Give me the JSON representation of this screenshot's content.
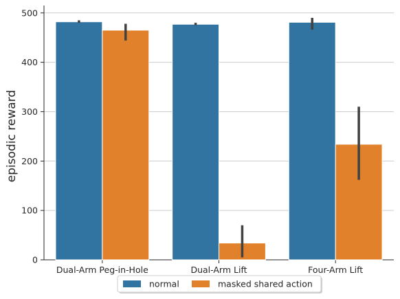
{
  "chart_data": {
    "type": "bar",
    "categories": [
      "Dual-Arm Peg-in-Hole",
      "Dual-Arm Lift",
      "Four-Arm Lift"
    ],
    "series": [
      {
        "name": "normal",
        "color": "#3274a1",
        "values": [
          482,
          477,
          481
        ],
        "error_low": [
          480,
          475,
          466
        ],
        "error_high": [
          485,
          480,
          490
        ]
      },
      {
        "name": "masked shared action",
        "color": "#e1812c",
        "values": [
          465,
          34,
          234
        ],
        "error_low": [
          444,
          5,
          162
        ],
        "error_high": [
          478,
          70,
          310
        ]
      }
    ],
    "xlabel": "",
    "ylabel": "episodic reward",
    "ylim": [
      0,
      515
    ],
    "yticks": [
      0,
      100,
      200,
      300,
      400,
      500
    ],
    "grid": "horizontal",
    "error_bar_color": "#424242",
    "legend_position": "bottom-center"
  }
}
